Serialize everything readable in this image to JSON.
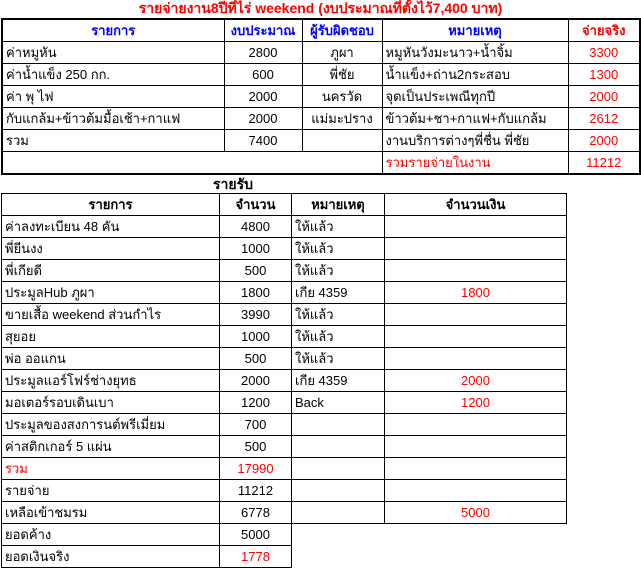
{
  "colors": {
    "accent_red": "#ff0000",
    "header_blue": "#0000ff",
    "grid": "#000000",
    "background": "#ffffff"
  },
  "expense_table": {
    "title": "รายจ่ายงาน8ปีที่ไร่ weekend (งบประมาณที่ตั้งไว้7,400 บาท)",
    "headers": [
      "รายการ",
      "งบประมาณ",
      "ผู้รับผิดชอบ",
      "หมายเหตุ",
      "จ่ายจริง"
    ],
    "rows": [
      {
        "item": "ค่าหมูหัน",
        "budget": "2800",
        "owner": "ภูผา",
        "note": "หมูหันวังมะนาว+น้ำจิ้ม",
        "actual": "3300"
      },
      {
        "item": "ค่าน้ำแข็ง 250 กก.",
        "budget": "600",
        "owner": "พี่ชัย",
        "note": "น้ำแข็ง+ถ่าน2กระสอบ",
        "actual": "1300"
      },
      {
        "item": "ค่า พุ ไฟ",
        "budget": "2000",
        "owner": "นครวัด",
        "note": "จุดเป็นประเพณีทุกปี",
        "actual": "2000"
      },
      {
        "item": "กับแกล้ม+ข้าวต้มมื้อเช้า+กาแฟ",
        "budget": "2000",
        "owner": "แม่มะปราง",
        "note": "ข้าวต้ม+ชา+กาแฟ+กับแกล้ม",
        "actual": "2612"
      },
      {
        "item": "รวม",
        "budget": "7400",
        "owner": "",
        "note": "งานบริการต่างๆพี่ชื่น พี่ชัย",
        "actual": "2000"
      }
    ],
    "grand_total": {
      "label": "รวมรายจ่ายในงาน",
      "value": "11212"
    }
  },
  "income_table": {
    "title": "รายรับ",
    "headers": [
      "รายการ",
      "จำนวน",
      "หมายเหตุ",
      "จำนวนเงิน"
    ],
    "rows": [
      {
        "item": "ค่าลงทะเบียน 48 คัน",
        "qty": "4800",
        "note": "ให้แล้ว",
        "amount": ""
      },
      {
        "item": "พี่ยีนงง",
        "qty": "1000",
        "note": "ให้แล้ว",
        "amount": ""
      },
      {
        "item": "พี่เกียดี",
        "qty": "500",
        "note": "ให้แล้ว",
        "amount": ""
      },
      {
        "item": "ประมูลHub ภูผา",
        "qty": "1800",
        "note": "เกีย 4359",
        "amount": "1800"
      },
      {
        "item": "ขายเสื้อ weekend ส่วนกำไร",
        "qty": "3990",
        "note": "ให้แล้ว",
        "amount": ""
      },
      {
        "item": "สุยอย",
        "qty": "1000",
        "note": "ให้แล้ว",
        "amount": ""
      },
      {
        "item": "พ่อ ออแกน",
        "qty": "500",
        "note": "ให้แล้ว",
        "amount": ""
      },
      {
        "item": "ประมูลแอร์โฟร์ช่างยุทธ",
        "qty": "2000",
        "note": "เกีย 4359",
        "amount": "2000"
      },
      {
        "item": "มอเตอร์รอบเดินเบา",
        "qty": "1200",
        "note": "Back",
        "amount": "1200"
      },
      {
        "item": "ประมูลของสงการนต์พรีเมี่ยม",
        "qty": "700",
        "note": "",
        "amount": ""
      },
      {
        "item": "ค่าสติกเกอร์ 5 แผ่น",
        "qty": "500",
        "note": "",
        "amount": ""
      },
      {
        "item": "รวม",
        "qty": "17990",
        "note": "",
        "amount": "",
        "item_red": true,
        "qty_red": true
      },
      {
        "item": "รายจ่าย",
        "qty": "11212",
        "note": "",
        "amount": ""
      },
      {
        "item": "เหลือเข้าชมรม",
        "qty": "6778",
        "note": "",
        "amount": "5000"
      }
    ],
    "footer_rows": [
      {
        "item": "ยอดค้าง",
        "qty": "5000"
      },
      {
        "item": "ยอดเงินจริง",
        "qty": "1778",
        "qty_red": true
      }
    ]
  }
}
